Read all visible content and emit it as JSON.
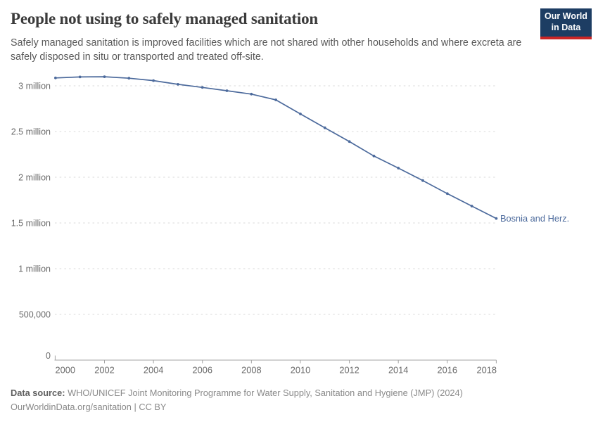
{
  "header": {
    "title": "People not using to safely managed sanitation",
    "subtitle": "Safely managed sanitation is improved facilities which are not shared with other households and where excreta are safely disposed in situ or transported and treated off-site.",
    "logo": {
      "line1": "Our World",
      "line2": "in Data"
    }
  },
  "chart_data": {
    "type": "line",
    "title": "People not using to safely managed sanitation",
    "xlabel": "",
    "ylabel": "",
    "x": [
      2000,
      2001,
      2002,
      2003,
      2004,
      2005,
      2006,
      2007,
      2008,
      2009,
      2010,
      2011,
      2012,
      2013,
      2014,
      2015,
      2016,
      2017,
      2018
    ],
    "series": [
      {
        "name": "Bosnia and Herz.",
        "color": "#4C6A9C",
        "values": [
          3086000,
          3097000,
          3099000,
          3083000,
          3057000,
          3016000,
          2982000,
          2946000,
          2909000,
          2846000,
          2692000,
          2541000,
          2390000,
          2232000,
          2100000,
          1964000,
          1821000,
          1685000,
          1549000
        ]
      }
    ],
    "end_label": "Bosnia and Herz.",
    "x_ticks": [
      2000,
      2002,
      2004,
      2006,
      2008,
      2010,
      2012,
      2014,
      2016,
      2018
    ],
    "y_ticks": [
      {
        "value": 0,
        "label": "0"
      },
      {
        "value": 500000,
        "label": "500,000"
      },
      {
        "value": 1000000,
        "label": "1 million"
      },
      {
        "value": 1500000,
        "label": "1.5 million"
      },
      {
        "value": 2000000,
        "label": "2 million"
      },
      {
        "value": 2500000,
        "label": "2.5 million"
      },
      {
        "value": 3000000,
        "label": "3 million"
      }
    ],
    "xlim": [
      2000,
      2018
    ],
    "ylim": [
      0,
      3200000
    ],
    "grid": true,
    "legend_position": "end-of-line"
  },
  "footer": {
    "datasource_bold": "Data source:",
    "datasource_rest": " WHO/UNICEF Joint Monitoring Programme for Water Supply, Sanitation and Hygiene (JMP) (2024)",
    "license_line": "OurWorldinData.org/sanitation | CC BY"
  },
  "colors": {
    "line": "#4C6A9C",
    "grid": "#d9d9d9",
    "axis": "#a3a3a3",
    "tick_label": "#6b6b6b",
    "logo_bg": "#1d3d63",
    "logo_red": "#cb2626"
  }
}
